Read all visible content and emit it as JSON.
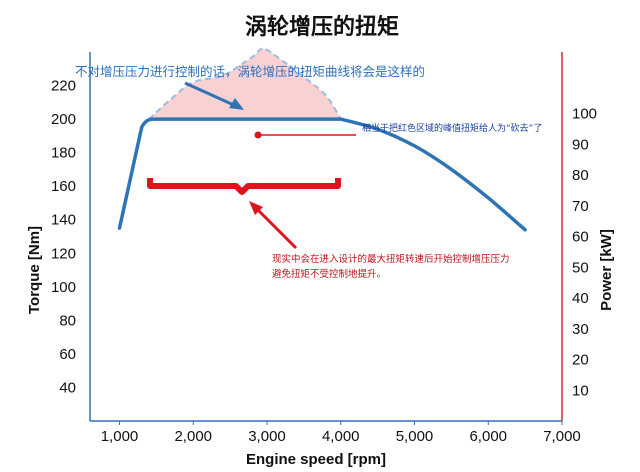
{
  "chart_data": {
    "type": "line",
    "title": "涡轮增压的扭矩",
    "xlabel": "Engine speed [rpm]",
    "ylabel": "Torque [Nm]",
    "y2label": "Power [kW]",
    "xlim": [
      600,
      7000
    ],
    "ylim": [
      20,
      240
    ],
    "y2lim": [
      0,
      120
    ],
    "xticks": [
      1000,
      2000,
      3000,
      4000,
      5000,
      6000,
      7000
    ],
    "xtick_labels": [
      "1,000",
      "2,000",
      "3,000",
      "4,000",
      "5,000",
      "6,000",
      "7,000"
    ],
    "yticks": [
      40,
      60,
      80,
      100,
      120,
      140,
      160,
      180,
      200,
      220
    ],
    "y2ticks": [
      10,
      20,
      30,
      40,
      50,
      60,
      70,
      80,
      90,
      100
    ],
    "grid": false,
    "series": [
      {
        "color": "#2e74b5",
        "style": "solid",
        "x": [
          1000,
          1300,
          1450,
          4000,
          4500,
          5000,
          5500,
          6000,
          6500
        ],
        "y": [
          135,
          195,
          200,
          200,
          194,
          184,
          170,
          153,
          134
        ]
      },
      {
        "color": "#9bbbe0",
        "style": "dashed",
        "x": [
          1400,
          1700,
          2000,
          2400,
          2800,
          2950,
          3200,
          3500,
          3800,
          4000
        ],
        "y": [
          200,
          212,
          222,
          226,
          237,
          242,
          235,
          225,
          214,
          200
        ]
      }
    ],
    "shaded_region": {
      "color": "#f6c6c8",
      "x_from": 1400,
      "x_to": 4000,
      "y_floor": 200
    },
    "annotations": {
      "top_note": "不对增压压力进行控制的话，涡轮增压的扭矩曲线将会是这样的",
      "red_region_note": "相当于把红色区域的峰值扭矩给人为“砍去”了",
      "plateau_note_line1": "现实中会在进入设计的最大扭矩转速后开始控制增压压力",
      "plateau_note_line2": "避免扭矩不受控制地提升。"
    },
    "colors": {
      "torque_line": "#2e74b5",
      "accent_red": "#e0141e",
      "right_axis": "#d9282f"
    }
  }
}
